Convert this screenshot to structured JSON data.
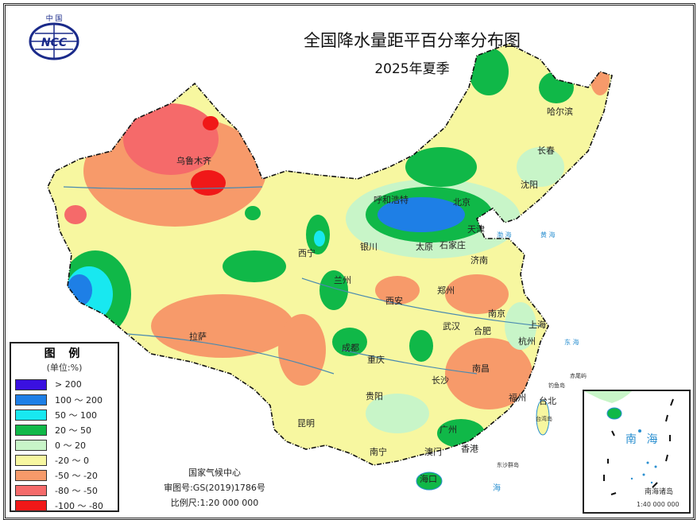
{
  "title": "全国降水量距平百分率分布图",
  "subtitle": "2025年夏季",
  "logo": {
    "text": "中国 NCC",
    "icon": "ncc-logo"
  },
  "legend": {
    "title": "图 例",
    "unit": "(单位:%)",
    "items": [
      {
        "label": "> 200",
        "color": "#3a10e0"
      },
      {
        "label": "100 ～ 200",
        "color": "#1e7fe6"
      },
      {
        "label": "50 ～ 100",
        "color": "#18e8f0"
      },
      {
        "label": "20 ～ 50",
        "color": "#10b848"
      },
      {
        "label": "0 ～ 20",
        "color": "#c8f5c8"
      },
      {
        "label": "-20 ～ 0",
        "color": "#f7f7a0"
      },
      {
        "label": "-50 ～ -20",
        "color": "#f79a6a"
      },
      {
        "label": "-80 ～ -50",
        "color": "#f56a6a"
      },
      {
        "label": "-100 ～ -80",
        "color": "#f01818"
      }
    ]
  },
  "credits": {
    "org": "国家气候中心",
    "approval": "审图号:GS(2019)1786号",
    "scale": "比例尺:1:20 000 000"
  },
  "cities": [
    "乌鲁木齐",
    "哈尔滨",
    "长春",
    "沈阳",
    "呼和浩特",
    "北京",
    "天津",
    "石家庄",
    "太原",
    "银川",
    "西宁",
    "兰州",
    "济南",
    "西安",
    "郑州",
    "南京",
    "合肥",
    "上海",
    "杭州",
    "武汉",
    "拉萨",
    "成都",
    "重庆",
    "长沙",
    "南昌",
    "福州",
    "台北",
    "贵阳",
    "昆明",
    "南宁",
    "广州",
    "澳门",
    "香港",
    "海口"
  ],
  "seas": [
    "渤 海",
    "黄 海",
    "东 海",
    "海"
  ],
  "islands": {
    "chiwei": "赤尾屿",
    "diaoyu": "钓鱼岛",
    "taiwan": "台湾岛",
    "dongsha": "东沙群岛"
  },
  "inset": {
    "sea": "南 海",
    "label": "南海诸岛",
    "scale": "1:40 000 000"
  }
}
